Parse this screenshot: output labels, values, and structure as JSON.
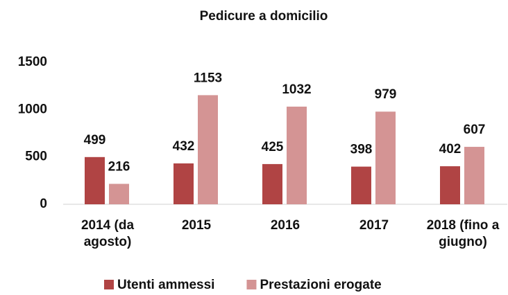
{
  "chart_data": {
    "type": "bar",
    "title": "Pedicure a domicilio",
    "categories": [
      "2014 (da agosto)",
      "2015",
      "2016",
      "2017",
      "2018 (fino a giugno)"
    ],
    "series": [
      {
        "name": "Utenti ammessi",
        "color": "#b04444",
        "values": [
          499,
          432,
          425,
          398,
          402
        ]
      },
      {
        "name": "Prestazioni erogate",
        "color": "#d49494",
        "values": [
          216,
          1153,
          1032,
          979,
          607
        ]
      }
    ],
    "ylim": [
      0,
      1500
    ],
    "yticks": [
      0,
      500,
      1000,
      1500
    ],
    "grid": false,
    "legend": "bottom"
  }
}
